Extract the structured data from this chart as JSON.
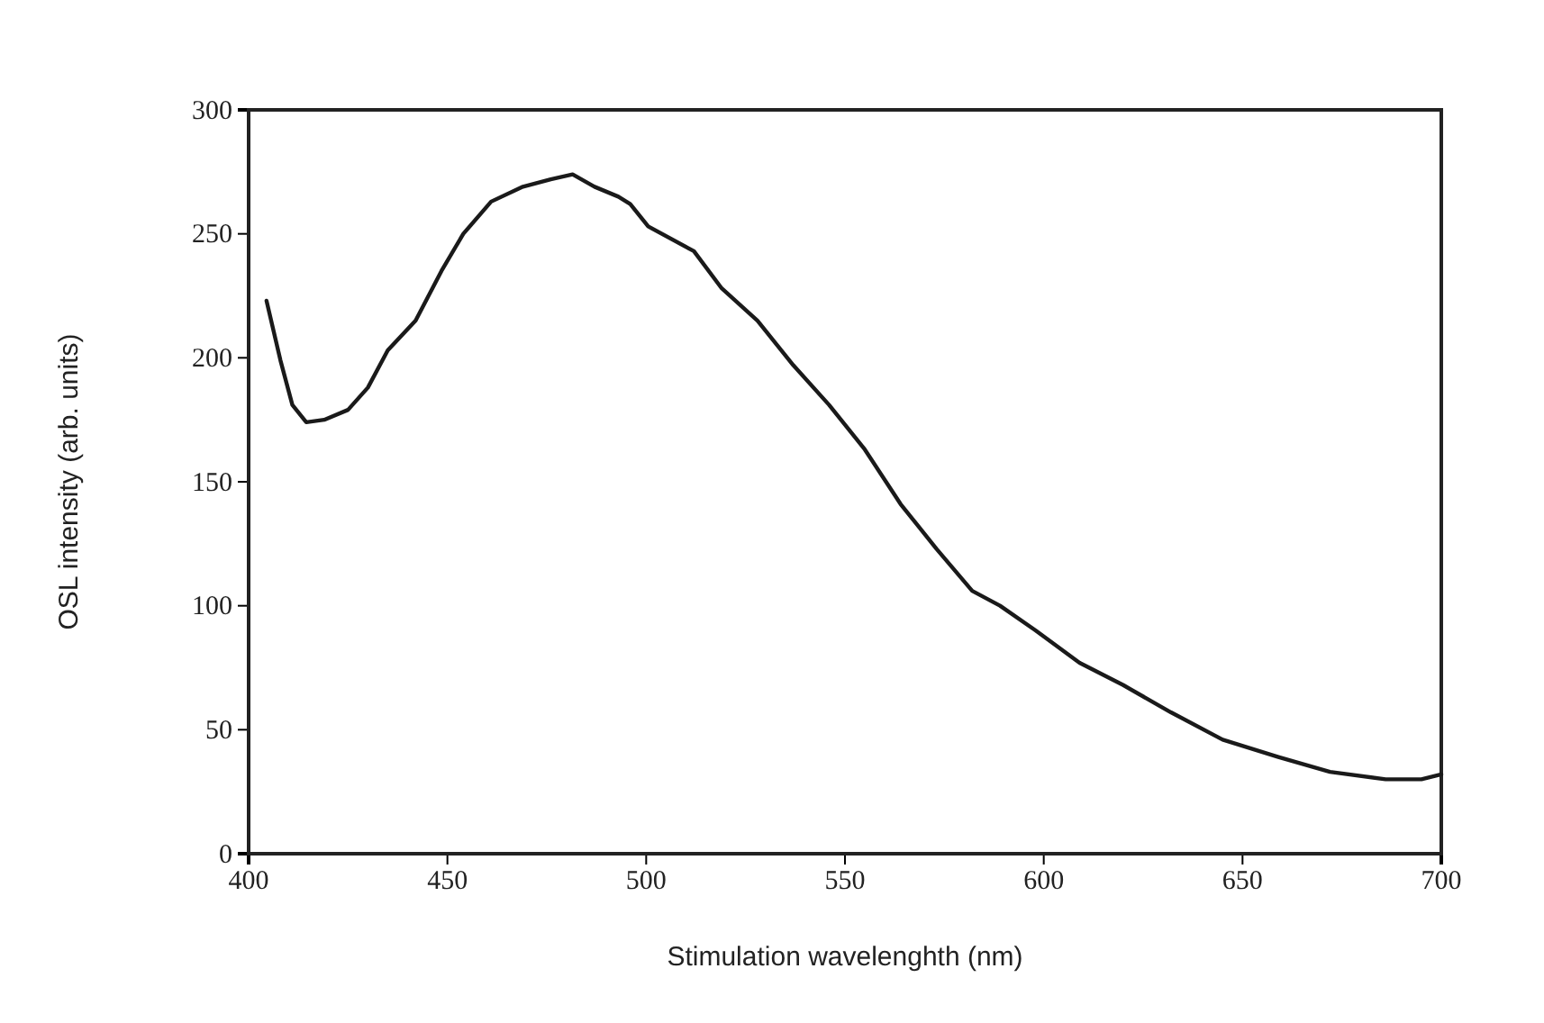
{
  "chart_data": {
    "type": "line",
    "xlabel": "Stimulation wavelenghth (nm)",
    "ylabel": "OSL intensity (arb. units)",
    "xlim": [
      400,
      700
    ],
    "xticks": [
      400,
      450,
      500,
      550,
      600,
      650,
      700
    ],
    "ylim": [
      0,
      300
    ],
    "yticks": [
      0,
      50,
      100,
      150,
      200,
      250,
      300
    ],
    "grid": false,
    "marker": "none",
    "line_style": "solid",
    "series": [
      {
        "color": "#1a1a1a",
        "x": [
          404.5,
          408,
          411,
          414.5,
          419,
          425,
          430,
          435,
          442,
          448.5,
          454,
          461,
          469,
          476,
          481.5,
          487,
          493,
          496,
          500.5,
          512,
          519,
          528,
          537,
          546,
          555,
          564,
          573,
          582,
          589,
          598,
          609,
          620,
          632,
          645,
          659,
          672,
          686,
          695,
          700
        ],
        "values": [
          223,
          199,
          181,
          174,
          175,
          179,
          188,
          203,
          215,
          235,
          250,
          263,
          269,
          272,
          274,
          269,
          265,
          262,
          253,
          243,
          228,
          215,
          197,
          181,
          163,
          141,
          123,
          106,
          100,
          90,
          77,
          68,
          57,
          46,
          39,
          33,
          30,
          30,
          32
        ]
      }
    ]
  }
}
